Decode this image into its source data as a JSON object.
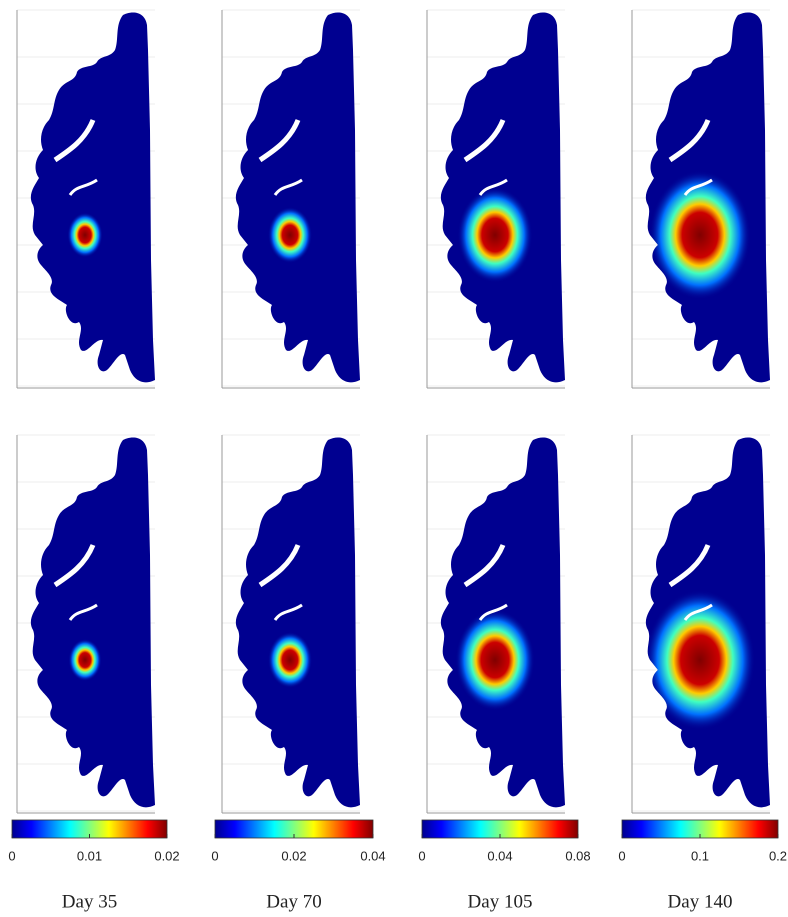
{
  "columns": [
    {
      "label": "Day 35",
      "clim": [
        0,
        0.02
      ],
      "ticks": [
        0,
        0.01,
        0.02
      ]
    },
    {
      "label": "Day 70",
      "clim": [
        0,
        0.04
      ],
      "ticks": [
        0,
        0.02,
        0.04
      ]
    },
    {
      "label": "Day 105",
      "clim": [
        0,
        0.08
      ],
      "ticks": [
        0,
        0.04,
        0.08
      ]
    },
    {
      "label": "Day 140",
      "clim": [
        0,
        0.2
      ],
      "ticks": [
        0,
        0.1,
        0.2
      ]
    }
  ]
}
